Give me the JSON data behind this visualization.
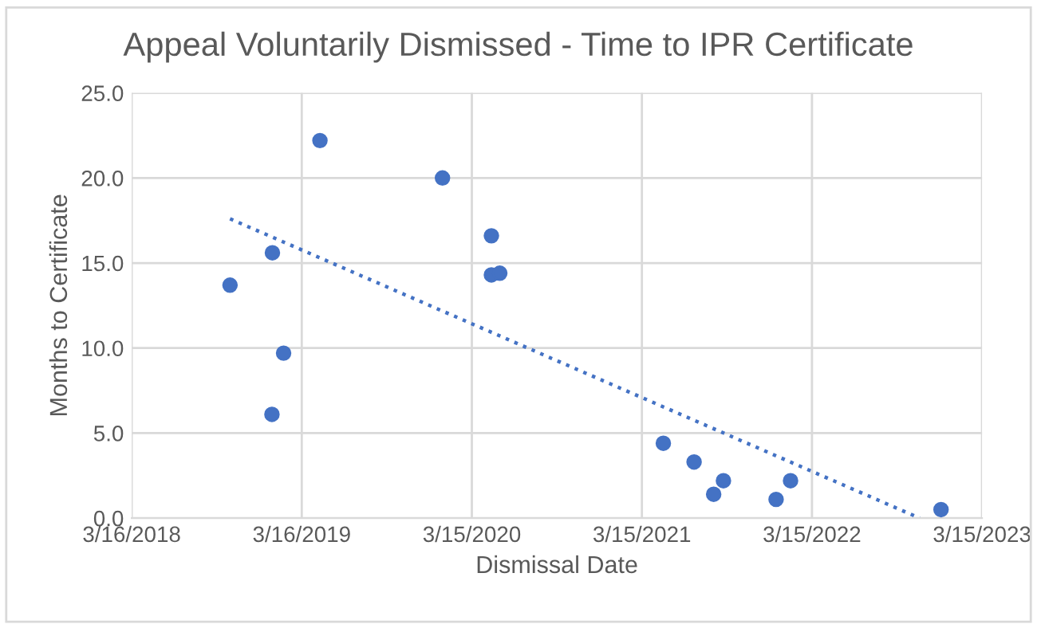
{
  "chart_data": {
    "type": "scatter",
    "title": "Appeal Voluntarily Dismissed - Time to IPR Certificate",
    "xlabel": "Dismissal Date",
    "ylabel": "Months to Certificate",
    "series": [
      {
        "color": "#4472c4",
        "marker": "circle",
        "x": [
          "2018-10-13",
          "2019-01-12",
          "2019-01-11",
          "2019-02-05",
          "2019-04-24",
          "2020-01-12",
          "2020-04-26",
          "2020-04-26",
          "2020-05-14",
          "2021-04-30",
          "2021-07-05",
          "2021-08-16",
          "2021-09-06",
          "2021-12-28",
          "2022-01-28",
          "2022-12-17"
        ],
        "values": [
          13.7,
          15.6,
          6.1,
          9.7,
          22.2,
          20.0,
          16.6,
          14.3,
          14.4,
          4.4,
          3.3,
          1.4,
          2.2,
          1.1,
          2.2,
          0.5
        ]
      },
      {
        "type": "line",
        "color": "#4472c4",
        "line_style": "dotted",
        "marker": "none",
        "x": [
          "2018-10-13",
          "2022-11-01"
        ],
        "values": [
          17.6,
          0.0
        ]
      }
    ],
    "xlim": [
      "2018-03-16",
      "2023-03-15"
    ],
    "xticks": [
      {
        "value": "2018-03-16",
        "label": "3/16/2018"
      },
      {
        "value": "2019-03-16",
        "label": "3/16/2019"
      },
      {
        "value": "2020-03-15",
        "label": "3/15/2020"
      },
      {
        "value": "2021-03-15",
        "label": "3/15/2021"
      },
      {
        "value": "2022-03-15",
        "label": "3/15/2022"
      },
      {
        "value": "2023-03-15",
        "label": "3/15/2023"
      }
    ],
    "ylim": [
      0,
      25
    ],
    "yticks": [
      {
        "value": 0,
        "label": "0.0"
      },
      {
        "value": 5,
        "label": "5.0"
      },
      {
        "value": 10,
        "label": "10.0"
      },
      {
        "value": 15,
        "label": "15.0"
      },
      {
        "value": 20,
        "label": "20.0"
      },
      {
        "value": 25,
        "label": "25.0"
      }
    ],
    "grid": true
  }
}
